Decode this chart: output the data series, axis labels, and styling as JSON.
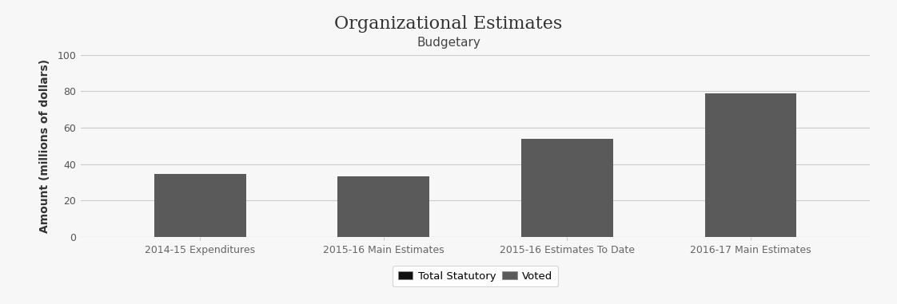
{
  "title": "Organizational Estimates",
  "subtitle": "Budgetary",
  "categories": [
    "2014-15 Expenditures",
    "2015-16 Main Estimates",
    "2015-16 Estimates To Date",
    "2016-17 Main Estimates"
  ],
  "values": [
    34.8,
    33.5,
    54.0,
    78.8
  ],
  "bar_color": "#5a5a5a",
  "ylabel": "Amount (millions of dollars)",
  "ylim": [
    0,
    100
  ],
  "yticks": [
    0,
    20,
    40,
    60,
    80,
    100
  ],
  "background_color": "#f7f7f7",
  "legend_labels": [
    "Total Statutory",
    "Voted"
  ],
  "legend_colors": [
    "#111111",
    "#5a5a5a"
  ],
  "title_fontsize": 16,
  "subtitle_fontsize": 11,
  "ylabel_fontsize": 10,
  "tick_fontsize": 9
}
